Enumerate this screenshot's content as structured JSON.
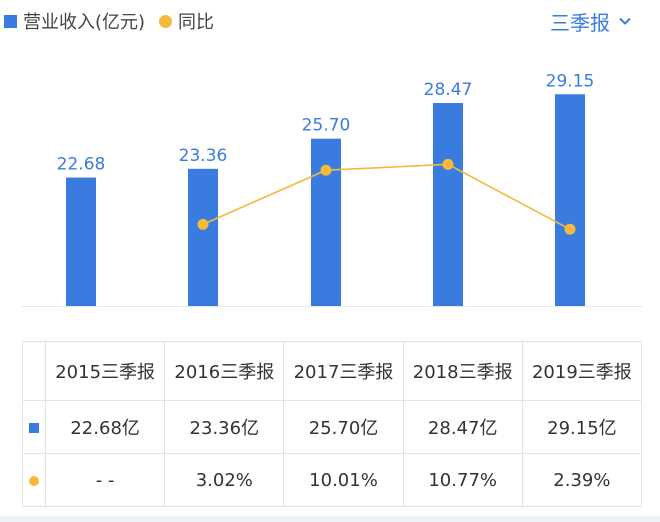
{
  "legend": {
    "bar_label": "营业收入(亿元)",
    "line_label": "同比"
  },
  "period_selector": {
    "label": "三季报",
    "icon": "chevron-down-icon"
  },
  "colors": {
    "bar": "#3a7be0",
    "line": "#f4b93d",
    "positive": "#e0403a"
  },
  "chart_data": {
    "type": "bar",
    "categories": [
      "2015三季报",
      "2016三季报",
      "2017三季报",
      "2018三季报",
      "2019三季报"
    ],
    "series": [
      {
        "name": "营业收入(亿元)",
        "values": [
          22.68,
          23.36,
          25.7,
          28.47,
          29.15
        ]
      },
      {
        "name": "同比",
        "type": "line",
        "values": [
          null,
          3.02,
          10.01,
          10.77,
          2.39
        ]
      }
    ],
    "data_labels": [
      "22.68",
      "23.36",
      "25.70",
      "28.47",
      "29.15"
    ]
  },
  "table": {
    "headers": [
      "2015三季报",
      "2016三季报",
      "2017三季报",
      "2018三季报",
      "2019三季报"
    ],
    "revenue": [
      "22.68亿",
      "23.36亿",
      "25.70亿",
      "28.47亿",
      "29.15亿"
    ],
    "growth": [
      "- -",
      "3.02%",
      "10.01%",
      "10.77%",
      "2.39%"
    ]
  }
}
